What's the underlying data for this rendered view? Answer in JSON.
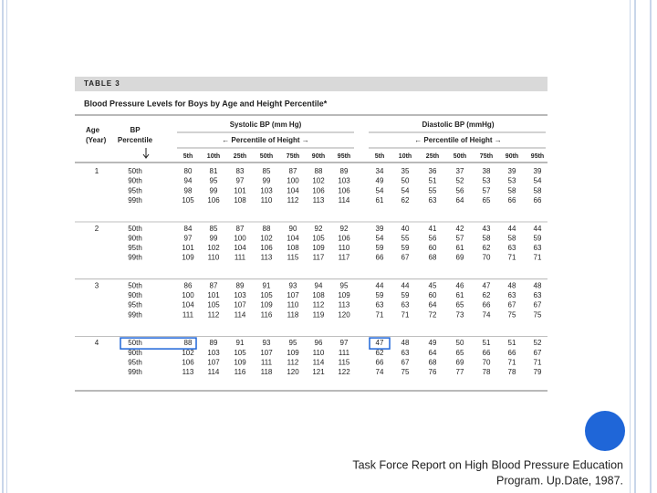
{
  "table_label": "TABLE 3",
  "title": "Blood Pressure Levels for Boys by Age and Height Percentile*",
  "headers": {
    "age": "Age",
    "age_unit": "(Year)",
    "bp": "BP",
    "bp_sub": "Percentile",
    "systolic": "Systolic BP (mm Hg)",
    "diastolic": "Diastolic BP (mmHg)",
    "height_span": "← Percentile of Height →",
    "percentiles": [
      "5th",
      "10th",
      "25th",
      "50th",
      "75th",
      "90th",
      "95th"
    ]
  },
  "groups": [
    {
      "age": "1",
      "rows": [
        {
          "percentile": "50th",
          "systolic": [
            "80",
            "81",
            "83",
            "85",
            "87",
            "88",
            "89"
          ],
          "diastolic": [
            "34",
            "35",
            "36",
            "37",
            "38",
            "39",
            "39"
          ]
        },
        {
          "percentile": "90th",
          "systolic": [
            "94",
            "95",
            "97",
            "99",
            "100",
            "102",
            "103"
          ],
          "diastolic": [
            "49",
            "50",
            "51",
            "52",
            "53",
            "53",
            "54"
          ]
        },
        {
          "percentile": "95th",
          "systolic": [
            "98",
            "99",
            "101",
            "103",
            "104",
            "106",
            "106"
          ],
          "diastolic": [
            "54",
            "54",
            "55",
            "56",
            "57",
            "58",
            "58"
          ]
        },
        {
          "percentile": "99th",
          "systolic": [
            "105",
            "106",
            "108",
            "110",
            "112",
            "113",
            "114"
          ],
          "diastolic": [
            "61",
            "62",
            "63",
            "64",
            "65",
            "66",
            "66"
          ]
        }
      ]
    },
    {
      "age": "2",
      "rows": [
        {
          "percentile": "50th",
          "systolic": [
            "84",
            "85",
            "87",
            "88",
            "90",
            "92",
            "92"
          ],
          "diastolic": [
            "39",
            "40",
            "41",
            "42",
            "43",
            "44",
            "44"
          ]
        },
        {
          "percentile": "90th",
          "systolic": [
            "97",
            "99",
            "100",
            "102",
            "104",
            "105",
            "106"
          ],
          "diastolic": [
            "54",
            "55",
            "56",
            "57",
            "58",
            "58",
            "59"
          ]
        },
        {
          "percentile": "95th",
          "systolic": [
            "101",
            "102",
            "104",
            "106",
            "108",
            "109",
            "110"
          ],
          "diastolic": [
            "59",
            "59",
            "60",
            "61",
            "62",
            "63",
            "63"
          ]
        },
        {
          "percentile": "99th",
          "systolic": [
            "109",
            "110",
            "111",
            "113",
            "115",
            "117",
            "117"
          ],
          "diastolic": [
            "66",
            "67",
            "68",
            "69",
            "70",
            "71",
            "71"
          ]
        }
      ]
    },
    {
      "age": "3",
      "rows": [
        {
          "percentile": "50th",
          "systolic": [
            "86",
            "87",
            "89",
            "91",
            "93",
            "94",
            "95"
          ],
          "diastolic": [
            "44",
            "44",
            "45",
            "46",
            "47",
            "48",
            "48"
          ]
        },
        {
          "percentile": "90th",
          "systolic": [
            "100",
            "101",
            "103",
            "105",
            "107",
            "108",
            "109"
          ],
          "diastolic": [
            "59",
            "59",
            "60",
            "61",
            "62",
            "63",
            "63"
          ]
        },
        {
          "percentile": "95th",
          "systolic": [
            "104",
            "105",
            "107",
            "109",
            "110",
            "112",
            "113"
          ],
          "diastolic": [
            "63",
            "63",
            "64",
            "65",
            "66",
            "67",
            "67"
          ]
        },
        {
          "percentile": "99th",
          "systolic": [
            "111",
            "112",
            "114",
            "116",
            "118",
            "119",
            "120"
          ],
          "diastolic": [
            "71",
            "71",
            "72",
            "73",
            "74",
            "75",
            "75"
          ]
        }
      ]
    },
    {
      "age": "4",
      "rows": [
        {
          "percentile": "50th",
          "systolic": [
            "88",
            "89",
            "91",
            "93",
            "95",
            "96",
            "97"
          ],
          "diastolic": [
            "47",
            "48",
            "49",
            "50",
            "51",
            "51",
            "52"
          ]
        },
        {
          "percentile": "90th",
          "systolic": [
            "102",
            "103",
            "105",
            "107",
            "109",
            "110",
            "111"
          ],
          "diastolic": [
            "62",
            "63",
            "64",
            "65",
            "66",
            "66",
            "67"
          ]
        },
        {
          "percentile": "95th",
          "systolic": [
            "106",
            "107",
            "109",
            "111",
            "112",
            "114",
            "115"
          ],
          "diastolic": [
            "66",
            "67",
            "68",
            "69",
            "70",
            "71",
            "71"
          ]
        },
        {
          "percentile": "99th",
          "systolic": [
            "113",
            "114",
            "116",
            "118",
            "120",
            "121",
            "122"
          ],
          "diastolic": [
            "74",
            "75",
            "76",
            "77",
            "78",
            "78",
            "79"
          ]
        }
      ]
    }
  ],
  "caption": [
    "Task Force Report on High Blood Pressure Education",
    "Program. Up.Date, 1987."
  ]
}
